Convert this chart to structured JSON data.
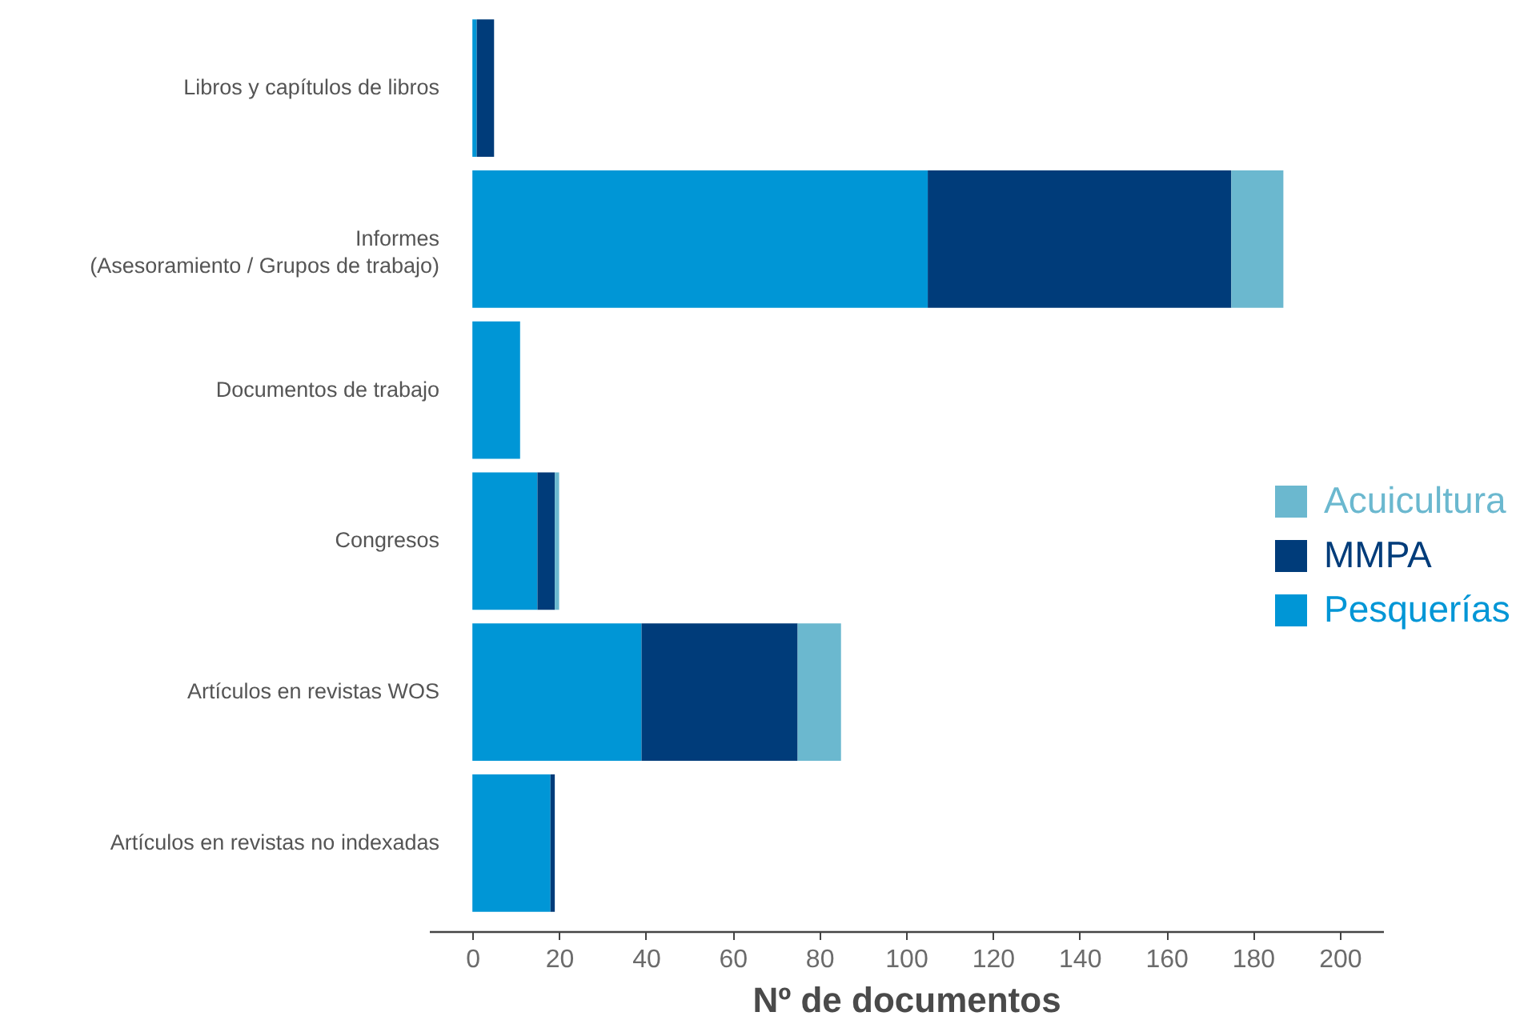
{
  "chart_data": {
    "type": "bar",
    "orientation": "horizontal",
    "stacked": true,
    "categories": [
      "Libros y capítulos de libros",
      "Informes\n(Asesoramiento / Grupos de trabajo)",
      "Documentos de trabajo",
      "Congresos",
      "Artículos en revistas WOS",
      "Artículos en revistas no indexadas"
    ],
    "series": [
      {
        "name": "Pesquerías",
        "color": "#0096d6",
        "values": [
          1,
          105,
          11,
          15,
          39,
          18
        ]
      },
      {
        "name": "MMPA",
        "color": "#003c7a",
        "values": [
          4,
          70,
          null,
          4,
          36,
          1
        ]
      },
      {
        "name": "Acuicultura",
        "color": "#6bb8cf",
        "values": [
          null,
          12,
          null,
          1,
          10,
          null
        ]
      }
    ],
    "xlabel": "Nº de documentos",
    "xlim": [
      -10,
      210
    ],
    "xticks": [
      0,
      20,
      40,
      60,
      80,
      100,
      120,
      140,
      160,
      180,
      200
    ],
    "grid": false,
    "legend": "right"
  }
}
